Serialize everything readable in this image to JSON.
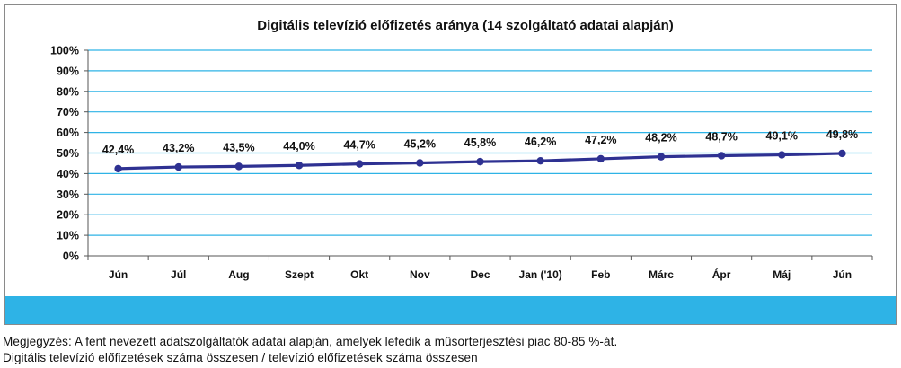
{
  "chart_data": {
    "type": "line",
    "title": "Digitális televízió előfizetés aránya (14 szolgáltató adatai alapján)",
    "categories": [
      "Jún",
      "Júl",
      "Aug",
      "Szept",
      "Okt",
      "Nov",
      "Dec",
      "Jan ('10)",
      "Feb",
      "Márc",
      "Ápr",
      "Máj",
      "Jún"
    ],
    "series": [
      {
        "values": [
          42.4,
          43.2,
          43.5,
          44.0,
          44.7,
          45.2,
          45.8,
          46.2,
          47.2,
          48.2,
          48.7,
          49.1,
          49.8
        ],
        "labels": [
          "42,4%",
          "43,2%",
          "43,5%",
          "44,0%",
          "44,7%",
          "45,2%",
          "45,8%",
          "46,2%",
          "47,2%",
          "48,2%",
          "48,7%",
          "49,1%",
          "49,8%"
        ]
      }
    ],
    "ylim": [
      0,
      100
    ],
    "yticks": [
      "0%",
      "10%",
      "20%",
      "30%",
      "40%",
      "50%",
      "60%",
      "70%",
      "80%",
      "90%",
      "100%"
    ],
    "grid": true,
    "colors": {
      "line": "#2e3192",
      "grid": "#2eb3e6",
      "band": "#2eb3e6"
    }
  },
  "notes": {
    "line1": "Megjegyzés: A fent nevezett adatszolgáltatók adatai alapján, amelyek lefedik a műsorterjesztési piac 80-85 %-át.",
    "line2": "Digitális televízió előfizetések száma összesen / televízió előfizetések száma összesen"
  }
}
